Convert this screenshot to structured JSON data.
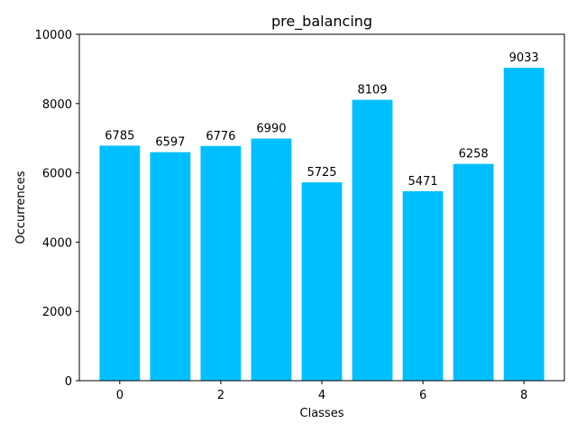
{
  "chart_data": {
    "type": "bar",
    "title": "pre_balancing",
    "xlabel": "Classes",
    "ylabel": "Occurrences",
    "categories": [
      0,
      1,
      2,
      3,
      4,
      5,
      6,
      7,
      8
    ],
    "values": [
      6785,
      6597,
      6776,
      6990,
      5725,
      8109,
      5471,
      6258,
      9033
    ],
    "xlim": [
      -0.8,
      8.8
    ],
    "ylim": [
      0,
      10000
    ],
    "xticks": [
      0,
      2,
      4,
      6,
      8
    ],
    "yticks": [
      0,
      2000,
      4000,
      6000,
      8000,
      10000
    ],
    "bar_color": "#00bfff",
    "grid": false,
    "legend": "none"
  }
}
